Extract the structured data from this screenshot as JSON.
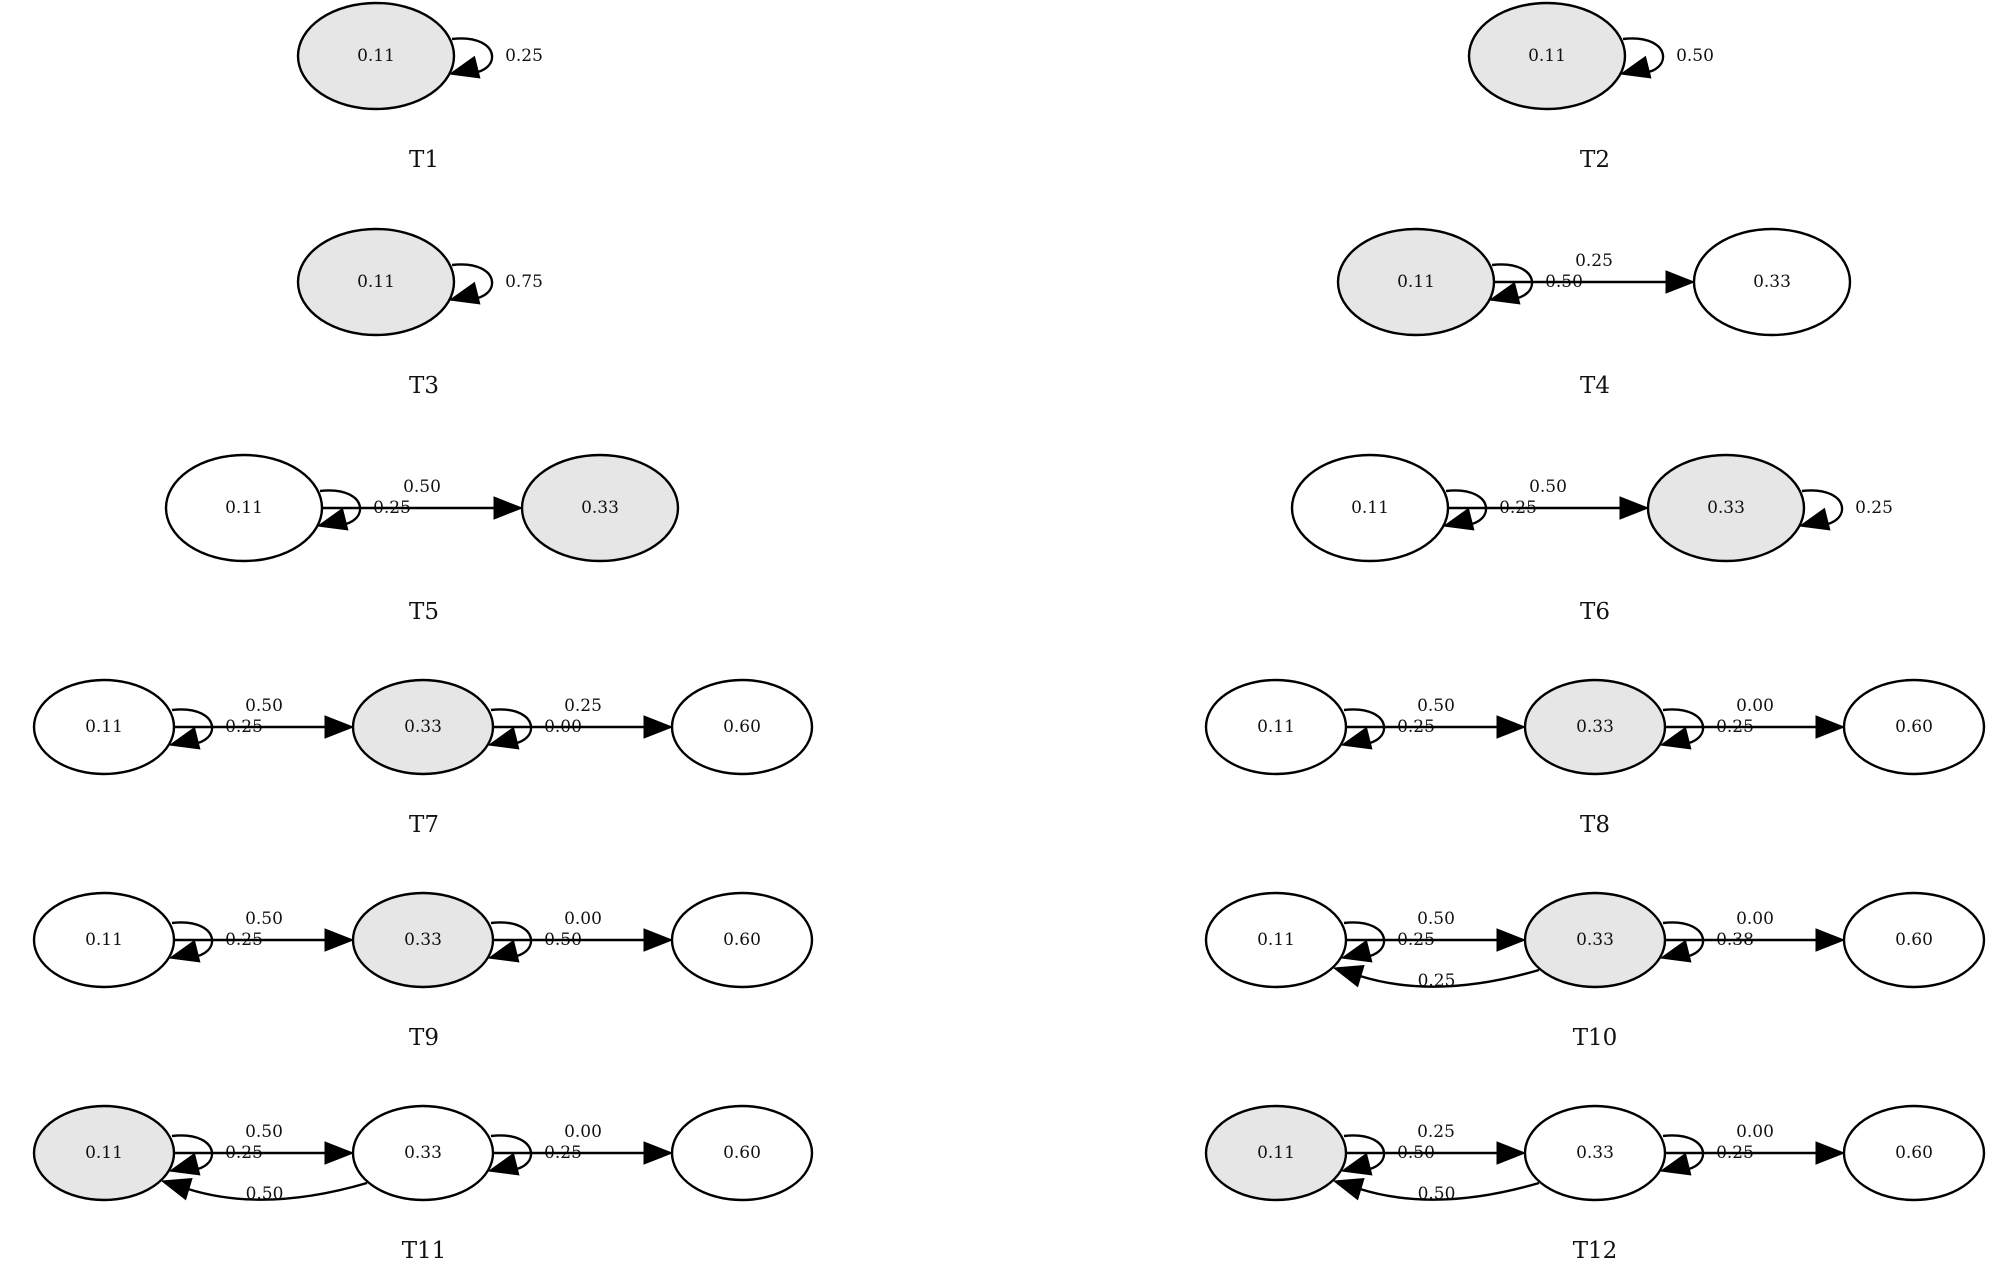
{
  "colors": {
    "highlight": "#e6e6e6",
    "plain": "#ffffff",
    "stroke": "#000000"
  },
  "panels": [
    {
      "name": "T1",
      "nodes": [
        {
          "label": "0.11",
          "highlighted": true
        }
      ],
      "self_loops": [
        {
          "node": 0,
          "label": "0.25"
        }
      ],
      "forward": [],
      "back": []
    },
    {
      "name": "T2",
      "nodes": [
        {
          "label": "0.11",
          "highlighted": true
        }
      ],
      "self_loops": [
        {
          "node": 0,
          "label": "0.50"
        }
      ],
      "forward": [],
      "back": []
    },
    {
      "name": "T3",
      "nodes": [
        {
          "label": "0.11",
          "highlighted": true
        }
      ],
      "self_loops": [
        {
          "node": 0,
          "label": "0.75"
        }
      ],
      "forward": [],
      "back": []
    },
    {
      "name": "T4",
      "nodes": [
        {
          "label": "0.11",
          "highlighted": true
        },
        {
          "label": "0.33",
          "highlighted": false
        }
      ],
      "self_loops": [
        {
          "node": 0,
          "label": "0.50"
        }
      ],
      "forward": [
        {
          "from": 0,
          "to": 1,
          "label": "0.25"
        }
      ],
      "back": []
    },
    {
      "name": "T5",
      "nodes": [
        {
          "label": "0.11",
          "highlighted": false
        },
        {
          "label": "0.33",
          "highlighted": true
        }
      ],
      "self_loops": [
        {
          "node": 0,
          "label": "0.25"
        }
      ],
      "forward": [
        {
          "from": 0,
          "to": 1,
          "label": "0.50"
        }
      ],
      "back": []
    },
    {
      "name": "T6",
      "nodes": [
        {
          "label": "0.11",
          "highlighted": false
        },
        {
          "label": "0.33",
          "highlighted": true
        }
      ],
      "self_loops": [
        {
          "node": 0,
          "label": "0.25"
        },
        {
          "node": 1,
          "label": "0.25"
        }
      ],
      "forward": [
        {
          "from": 0,
          "to": 1,
          "label": "0.50"
        }
      ],
      "back": []
    },
    {
      "name": "T7",
      "nodes": [
        {
          "label": "0.11",
          "highlighted": false
        },
        {
          "label": "0.33",
          "highlighted": true
        },
        {
          "label": "0.60",
          "highlighted": false
        }
      ],
      "self_loops": [
        {
          "node": 0,
          "label": "0.25"
        },
        {
          "node": 1,
          "label": "0.00"
        }
      ],
      "forward": [
        {
          "from": 0,
          "to": 1,
          "label": "0.50"
        },
        {
          "from": 1,
          "to": 2,
          "label": "0.25"
        }
      ],
      "back": []
    },
    {
      "name": "T8",
      "nodes": [
        {
          "label": "0.11",
          "highlighted": false
        },
        {
          "label": "0.33",
          "highlighted": true
        },
        {
          "label": "0.60",
          "highlighted": false
        }
      ],
      "self_loops": [
        {
          "node": 0,
          "label": "0.25"
        },
        {
          "node": 1,
          "label": "0.25"
        }
      ],
      "forward": [
        {
          "from": 0,
          "to": 1,
          "label": "0.50"
        },
        {
          "from": 1,
          "to": 2,
          "label": "0.00"
        }
      ],
      "back": []
    },
    {
      "name": "T9",
      "nodes": [
        {
          "label": "0.11",
          "highlighted": false
        },
        {
          "label": "0.33",
          "highlighted": true
        },
        {
          "label": "0.60",
          "highlighted": false
        }
      ],
      "self_loops": [
        {
          "node": 0,
          "label": "0.25"
        },
        {
          "node": 1,
          "label": "0.50"
        }
      ],
      "forward": [
        {
          "from": 0,
          "to": 1,
          "label": "0.50"
        },
        {
          "from": 1,
          "to": 2,
          "label": "0.00"
        }
      ],
      "back": []
    },
    {
      "name": "T10",
      "nodes": [
        {
          "label": "0.11",
          "highlighted": false
        },
        {
          "label": "0.33",
          "highlighted": true
        },
        {
          "label": "0.60",
          "highlighted": false
        }
      ],
      "self_loops": [
        {
          "node": 0,
          "label": "0.25"
        },
        {
          "node": 1,
          "label": "0.38"
        }
      ],
      "forward": [
        {
          "from": 0,
          "to": 1,
          "label": "0.50"
        },
        {
          "from": 1,
          "to": 2,
          "label": "0.00"
        }
      ],
      "back": [
        {
          "from": 1,
          "to": 0,
          "label": "0.25"
        }
      ]
    },
    {
      "name": "T11",
      "nodes": [
        {
          "label": "0.11",
          "highlighted": true
        },
        {
          "label": "0.33",
          "highlighted": false
        },
        {
          "label": "0.60",
          "highlighted": false
        }
      ],
      "self_loops": [
        {
          "node": 0,
          "label": "0.25"
        },
        {
          "node": 1,
          "label": "0.25"
        }
      ],
      "forward": [
        {
          "from": 0,
          "to": 1,
          "label": "0.50"
        },
        {
          "from": 1,
          "to": 2,
          "label": "0.00"
        }
      ],
      "back": [
        {
          "from": 1,
          "to": 0,
          "label": "0.50"
        }
      ]
    },
    {
      "name": "T12",
      "nodes": [
        {
          "label": "0.11",
          "highlighted": true
        },
        {
          "label": "0.33",
          "highlighted": false
        },
        {
          "label": "0.60",
          "highlighted": false
        }
      ],
      "self_loops": [
        {
          "node": 0,
          "label": "0.50"
        },
        {
          "node": 1,
          "label": "0.25"
        }
      ],
      "forward": [
        {
          "from": 0,
          "to": 1,
          "label": "0.25"
        },
        {
          "from": 1,
          "to": 2,
          "label": "0.00"
        }
      ],
      "back": [
        {
          "from": 1,
          "to": 0,
          "label": "0.50"
        }
      ]
    }
  ]
}
